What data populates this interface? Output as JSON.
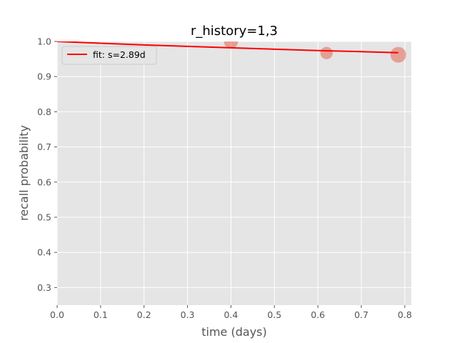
{
  "chart_data": {
    "type": "scatter",
    "title": "r_history=1,3",
    "xlabel": "time (days)",
    "ylabel": "recall probability",
    "xlim": [
      0.0,
      0.815
    ],
    "ylim": [
      0.25,
      1.0
    ],
    "xticks": [
      0.0,
      0.1,
      0.2,
      0.3,
      0.4,
      0.5,
      0.6,
      0.7,
      0.8
    ],
    "xtick_labels": [
      "0.0",
      "0.1",
      "0.2",
      "0.3",
      "0.4",
      "0.5",
      "0.6",
      "0.7",
      "0.8"
    ],
    "yticks": [
      0.3,
      0.4,
      0.5,
      0.6,
      0.7,
      0.8,
      0.9,
      1.0
    ],
    "ytick_labels": [
      "0.3",
      "0.4",
      "0.5",
      "0.6",
      "0.7",
      "0.8",
      "0.9",
      "1.0"
    ],
    "grid": true,
    "legend_position": "top-left",
    "colors": {
      "background": "#e5e5e5",
      "grid": "#ffffff",
      "points": "#e24a33",
      "fit": "#ff0000"
    },
    "points": [
      {
        "x": 0.4,
        "y": 1.0,
        "weight": 3
      },
      {
        "x": 0.62,
        "y": 0.967,
        "weight": 2
      },
      {
        "x": 0.785,
        "y": 0.962,
        "weight": 4
      }
    ],
    "fit": {
      "name": "fit: s=2.89d",
      "x": [
        0.0,
        0.1,
        0.2,
        0.3,
        0.4,
        0.5,
        0.6,
        0.7,
        0.785
      ],
      "y": [
        1.0,
        0.995,
        0.99,
        0.986,
        0.982,
        0.978,
        0.974,
        0.971,
        0.968
      ]
    }
  }
}
